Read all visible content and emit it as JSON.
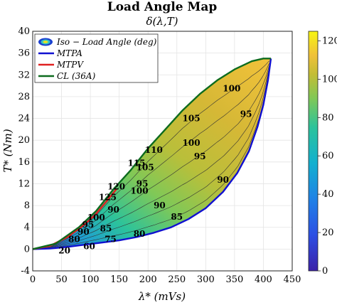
{
  "chart_data": {
    "type": "heatmap",
    "title": "Load Angle Map",
    "subtitle": "δ(λ,T)",
    "xlabel": "λ* (mVs)",
    "ylabel": "T* (Nm)",
    "xlim": [
      0,
      450
    ],
    "ylim": [
      -4,
      40
    ],
    "xticks": [
      "0",
      "50",
      "100",
      "150",
      "200",
      "250",
      "300",
      "350",
      "400",
      "450"
    ],
    "yticks": [
      "-4",
      "0",
      "4",
      "8",
      "12",
      "16",
      "20",
      "24",
      "28",
      "32",
      "36",
      "40"
    ],
    "grid": true,
    "legend_position": "top-left",
    "legend": [
      {
        "label": "Iso − Load Angle (deg)",
        "color": "#d9b72a"
      },
      {
        "label": "MTPA",
        "color": "#1010d0"
      },
      {
        "label": "MTPV",
        "color": "#e02020"
      },
      {
        "label": "CL (36A)",
        "color": "#0d6b1e"
      }
    ],
    "colorbar": {
      "min": 0,
      "max": 125,
      "ticks": [
        "0",
        "20",
        "40",
        "60",
        "80",
        "100",
        "120"
      ]
    },
    "series": [
      {
        "name": "MTPA",
        "x": [
          0,
          30,
          60,
          90,
          120,
          150,
          180,
          210,
          240,
          270,
          300,
          330,
          355,
          375,
          390,
          400,
          408,
          413
        ],
        "y": [
          0,
          0.1,
          0.4,
          0.8,
          1.2,
          1.6,
          2.2,
          3.0,
          4.0,
          5.5,
          7.5,
          10.5,
          14.0,
          18.0,
          22.5,
          26.5,
          31.0,
          35.0
        ]
      },
      {
        "name": "MTPV",
        "x": [
          0,
          30,
          60,
          90,
          110,
          130,
          145
        ],
        "y": [
          0,
          0.6,
          2.2,
          4.5,
          6.5,
          9.0,
          11.0
        ]
      },
      {
        "name": "CL (36A)",
        "x": [
          0,
          40,
          80,
          110,
          140,
          170,
          200,
          230,
          260,
          290,
          320,
          350,
          380,
          400,
          413
        ],
        "y": [
          0,
          1.0,
          4.0,
          7.0,
          11.0,
          14.5,
          18.5,
          22.0,
          25.5,
          28.5,
          31.0,
          33.0,
          34.5,
          35.0,
          35.0
        ]
      }
    ],
    "contour_labels": [
      {
        "text": "20",
        "x": 55,
        "y": -0.3
      },
      {
        "text": "60",
        "x": 98,
        "y": 0.5
      },
      {
        "text": "75",
        "x": 135,
        "y": 1.8
      },
      {
        "text": "80",
        "x": 185,
        "y": 2.8
      },
      {
        "text": "85",
        "x": 250,
        "y": 5.9
      },
      {
        "text": "90",
        "x": 330,
        "y": 12.7
      },
      {
        "text": "95",
        "x": 370,
        "y": 24.8
      },
      {
        "text": "100",
        "x": 345,
        "y": 29.5
      },
      {
        "text": "80",
        "x": 72,
        "y": 1.8
      },
      {
        "text": "90",
        "x": 88,
        "y": 3.2
      },
      {
        "text": "95",
        "x": 96,
        "y": 4.5
      },
      {
        "text": "100",
        "x": 110,
        "y": 5.8
      },
      {
        "text": "85",
        "x": 127,
        "y": 3.8
      },
      {
        "text": "90",
        "x": 140,
        "y": 7.2
      },
      {
        "text": "95",
        "x": 190,
        "y": 12.0
      },
      {
        "text": "100",
        "x": 185,
        "y": 10.7
      },
      {
        "text": "105",
        "x": 195,
        "y": 15.0
      },
      {
        "text": "110",
        "x": 210,
        "y": 18.2
      },
      {
        "text": "115",
        "x": 180,
        "y": 15.8
      },
      {
        "text": "120",
        "x": 145,
        "y": 11.5
      },
      {
        "text": "125",
        "x": 130,
        "y": 9.5
      },
      {
        "text": "90",
        "x": 220,
        "y": 8.0
      },
      {
        "text": "95",
        "x": 290,
        "y": 17.0
      },
      {
        "text": "100",
        "x": 275,
        "y": 19.5
      },
      {
        "text": "105",
        "x": 275,
        "y": 24.0
      }
    ]
  }
}
